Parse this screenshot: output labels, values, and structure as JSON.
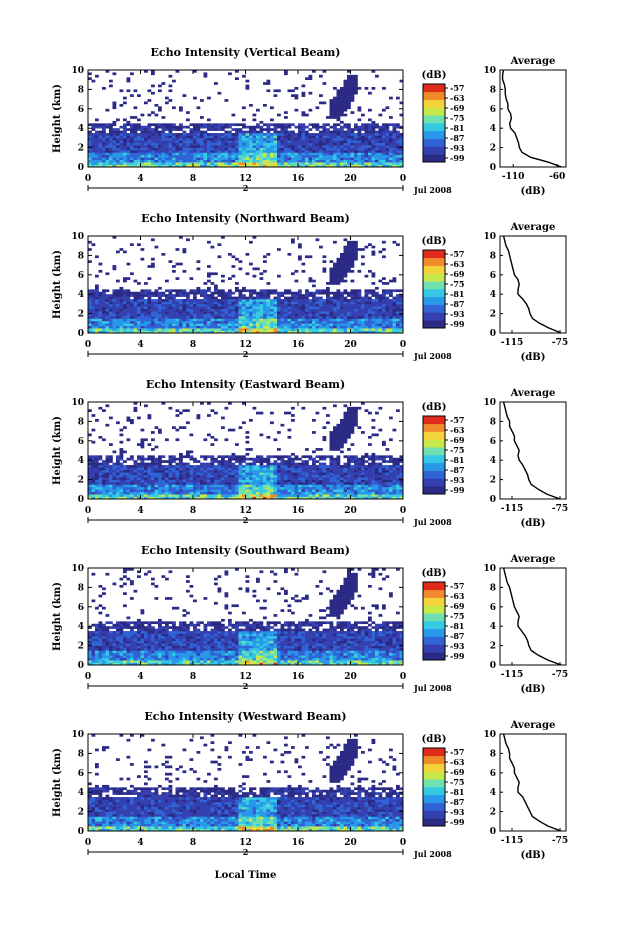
{
  "figure": {
    "x_axis_label": "Local Time",
    "date_label": "Jul 2008",
    "day_label": "2",
    "x_ticks": [
      "0",
      "4",
      "8",
      "12",
      "16",
      "20",
      "0"
    ],
    "y_ticks": [
      "0",
      "2",
      "4",
      "6",
      "8",
      "10"
    ],
    "y_axis_label": "Height (km)",
    "colorbar_title": "(dB)",
    "colorbar_ticks": [
      "-57",
      "-63",
      "-69",
      "-75",
      "-81",
      "-87",
      "-93",
      "-99"
    ],
    "avg_title": "Average",
    "avg_xlabel": "(dB)",
    "colors": {
      "colormap": [
        "#2b2b86",
        "#3540b0",
        "#2f63d6",
        "#2898e8",
        "#35c9e4",
        "#6fe0b0",
        "#c8e84a",
        "#f4d23a",
        "#f08a2a",
        "#e02a1a"
      ],
      "background": "#ffffff"
    }
  },
  "chart_data": [
    {
      "type": "heatmap",
      "title": "Echo Intensity (Vertical Beam)",
      "xlabel": "",
      "ylabel": "Height (km)",
      "xlim": [
        0,
        24
      ],
      "ylim": [
        0,
        10
      ],
      "colorbar": {
        "label": "(dB)",
        "ticks": [
          -57,
          -63,
          -69,
          -75,
          -81,
          -87,
          -93,
          -99
        ]
      },
      "average_profile": {
        "title": "Average",
        "xlabel": "(dB)",
        "xticks": [
          "-110",
          "-60"
        ],
        "xlim": [
          -125,
          -50
        ],
        "height_km": [
          0,
          0.5,
          1,
          1.5,
          2,
          2.5,
          3,
          3.5,
          4,
          4.5,
          5,
          5.5,
          6,
          6.5,
          7,
          7.5,
          8,
          8.5,
          9,
          9.5,
          10
        ],
        "values_db": [
          -55,
          -70,
          -90,
          -100,
          -103,
          -104,
          -106,
          -108,
          -113,
          -114,
          -112,
          -113,
          -116,
          -116,
          -118,
          -119,
          -119,
          -120,
          -122,
          -122,
          -121
        ]
      }
    },
    {
      "type": "heatmap",
      "title": "Echo Intensity (Northward Beam)",
      "xlabel": "",
      "ylabel": "Height (km)",
      "xlim": [
        0,
        24
      ],
      "ylim": [
        0,
        10
      ],
      "colorbar": {
        "label": "(dB)",
        "ticks": [
          -57,
          -63,
          -69,
          -75,
          -81,
          -87,
          -93,
          -99
        ]
      },
      "average_profile": {
        "title": "Average",
        "xlabel": "(dB)",
        "xticks": [
          "-115",
          "-75"
        ],
        "xlim": [
          -125,
          -70
        ],
        "height_km": [
          0,
          0.5,
          1,
          1.5,
          2,
          2.5,
          3,
          3.5,
          4,
          4.5,
          5,
          5.5,
          6,
          6.5,
          7,
          7.5,
          8,
          8.5,
          9,
          9.5,
          10
        ],
        "values_db": [
          -74,
          -84,
          -92,
          -98,
          -100,
          -101,
          -103,
          -106,
          -110,
          -110,
          -109,
          -110,
          -113,
          -114,
          -115,
          -116,
          -117,
          -118,
          -120,
          -121,
          -122
        ]
      }
    },
    {
      "type": "heatmap",
      "title": "Echo Intensity (Eastward Beam)",
      "xlabel": "",
      "ylabel": "Height (km)",
      "xlim": [
        0,
        24
      ],
      "ylim": [
        0,
        10
      ],
      "colorbar": {
        "label": "(dB)",
        "ticks": [
          -57,
          -63,
          -69,
          -75,
          -81,
          -87,
          -93,
          -99
        ]
      },
      "average_profile": {
        "title": "Average",
        "xlabel": "(dB)",
        "xticks": [
          "-115",
          "-75"
        ],
        "xlim": [
          -125,
          -70
        ],
        "height_km": [
          0,
          0.5,
          1,
          1.5,
          2,
          2.5,
          3,
          3.5,
          4,
          4.5,
          5,
          5.5,
          6,
          6.5,
          7,
          7.5,
          8,
          8.5,
          9,
          9.5,
          10
        ],
        "values_db": [
          -75,
          -86,
          -93,
          -99,
          -101,
          -102,
          -104,
          -106,
          -109,
          -110,
          -109,
          -111,
          -113,
          -113,
          -115,
          -117,
          -117,
          -119,
          -120,
          -121,
          -122
        ]
      }
    },
    {
      "type": "heatmap",
      "title": "Echo Intensity (Southward Beam)",
      "xlabel": "",
      "ylabel": "Height (km)",
      "xlim": [
        0,
        24
      ],
      "ylim": [
        0,
        10
      ],
      "colorbar": {
        "label": "(dB)",
        "ticks": [
          -57,
          -63,
          -69,
          -75,
          -81,
          -87,
          -93,
          -99
        ]
      },
      "average_profile": {
        "title": "Average",
        "xlabel": "(dB)",
        "xticks": [
          "-115",
          "-75"
        ],
        "xlim": [
          -125,
          -70
        ],
        "height_km": [
          0,
          0.5,
          1,
          1.5,
          2,
          2.5,
          3,
          3.5,
          4,
          4.5,
          5,
          5.5,
          6,
          6.5,
          7,
          7.5,
          8,
          8.5,
          9,
          9.5,
          10
        ],
        "values_db": [
          -74,
          -85,
          -93,
          -99,
          -101,
          -102,
          -104,
          -107,
          -110,
          -110,
          -109,
          -111,
          -113,
          -114,
          -115,
          -116,
          -117,
          -119,
          -120,
          -121,
          -122
        ]
      }
    },
    {
      "type": "heatmap",
      "title": "Echo Intensity (Westward Beam)",
      "xlabel": "Local Time",
      "ylabel": "Height (km)",
      "xlim": [
        0,
        24
      ],
      "ylim": [
        0,
        10
      ],
      "colorbar": {
        "label": "(dB)",
        "ticks": [
          -57,
          -63,
          -69,
          -75,
          -81,
          -87,
          -93,
          -99
        ]
      },
      "average_profile": {
        "title": "Average",
        "xlabel": "(dB)",
        "xticks": [
          "-115",
          "-75"
        ],
        "xlim": [
          -125,
          -70
        ],
        "height_km": [
          0,
          0.5,
          1,
          1.5,
          2,
          2.5,
          3,
          3.5,
          4,
          4.5,
          5,
          5.5,
          6,
          6.5,
          7,
          7.5,
          8,
          8.5,
          9,
          9.5,
          10
        ],
        "values_db": [
          -74,
          -85,
          -92,
          -98,
          -100,
          -102,
          -104,
          -106,
          -110,
          -110,
          -109,
          -111,
          -113,
          -113,
          -115,
          -117,
          -117,
          -118,
          -120,
          -121,
          -122
        ]
      }
    }
  ]
}
